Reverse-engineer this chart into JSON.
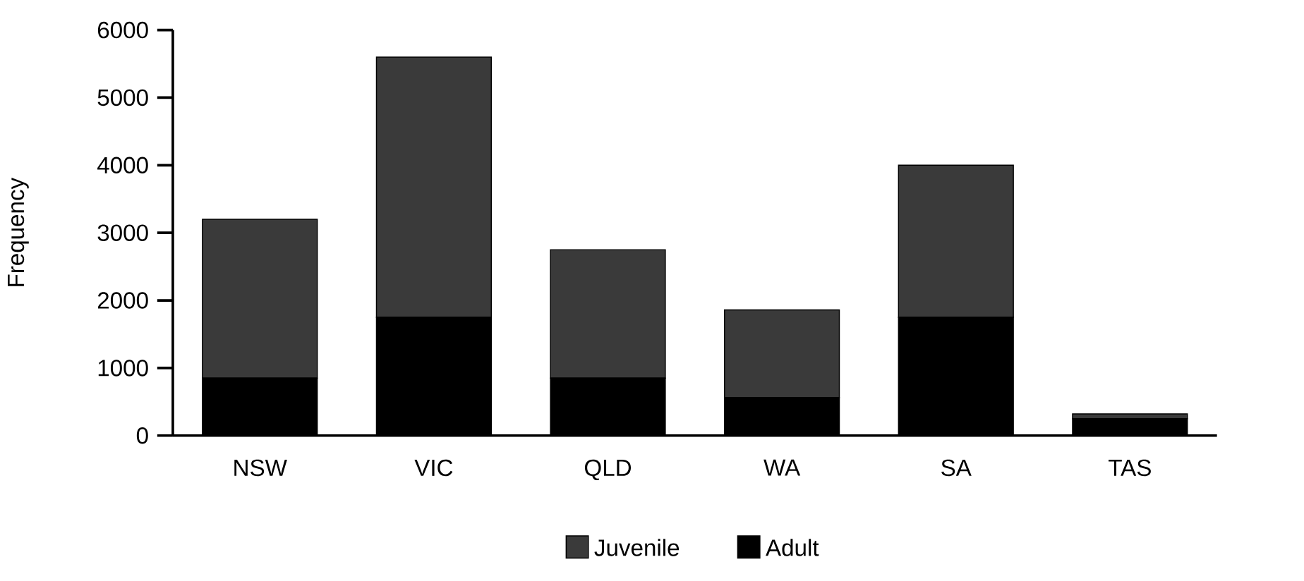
{
  "chart_data": {
    "type": "bar",
    "stacked": true,
    "ylabel": "Frequency",
    "categories": [
      "NSW",
      "VIC",
      "QLD",
      "WA",
      "SA",
      "TAS"
    ],
    "series": [
      {
        "name": "Adult",
        "color": "#000000",
        "values": [
          850,
          1750,
          850,
          560,
          1750,
          250
        ]
      },
      {
        "name": "Juvenile",
        "color": "#3a3a3a",
        "values": [
          2350,
          3850,
          1900,
          1300,
          2250,
          70
        ]
      }
    ],
    "ylim": [
      0,
      6000
    ],
    "yticks": [
      0,
      1000,
      2000,
      3000,
      4000,
      5000,
      6000
    ],
    "grid": false,
    "legend": "bottom"
  }
}
